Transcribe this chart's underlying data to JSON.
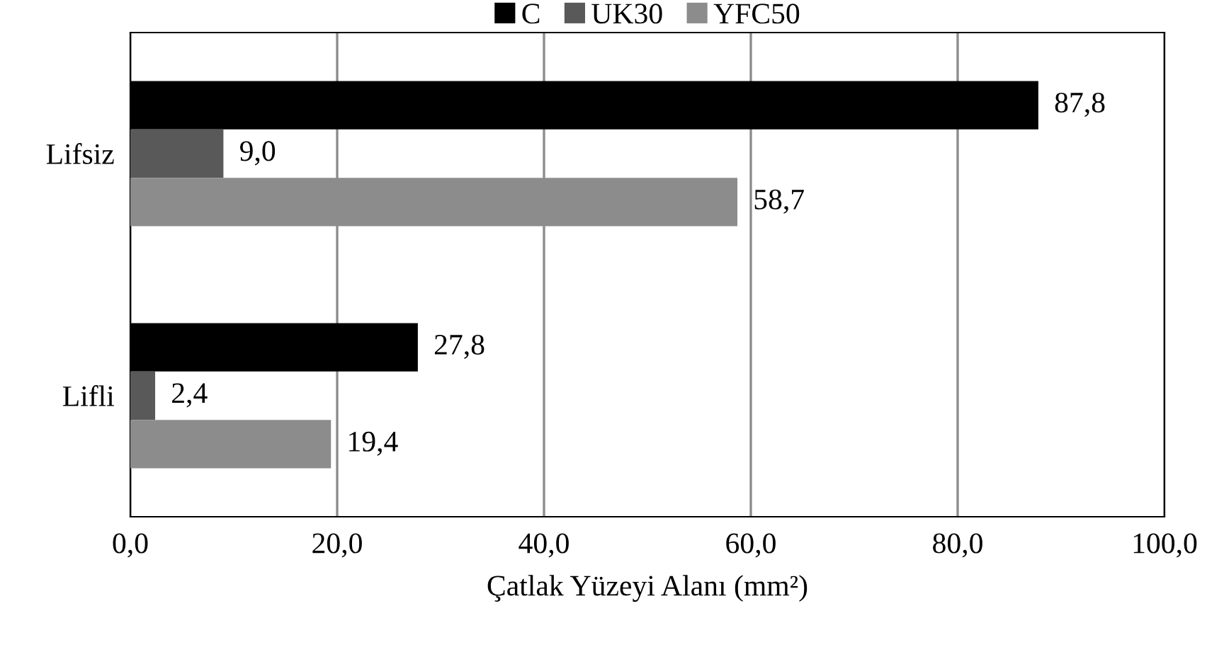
{
  "chart_data": {
    "type": "bar",
    "orientation": "horizontal",
    "xlabel": "Çatlak Yüzeyi Alanı (mm²)",
    "categories": [
      "Lifsiz",
      "Lifli"
    ],
    "series": [
      {
        "name": "C",
        "color": "#000000",
        "values": [
          87.8,
          27.8
        ],
        "value_labels": [
          "87,8",
          "27,8"
        ]
      },
      {
        "name": "UK30",
        "color": "#595959",
        "values": [
          9.0,
          2.4
        ],
        "value_labels": [
          "9,0",
          "2,4"
        ]
      },
      {
        "name": "YFC50",
        "color": "#8c8c8c",
        "values": [
          58.7,
          19.4
        ],
        "value_labels": [
          "58,7",
          "19,4"
        ]
      }
    ],
    "xlim": [
      0,
      100
    ],
    "xticks": [
      {
        "value": 0,
        "label": "0,0"
      },
      {
        "value": 20,
        "label": "20,0"
      },
      {
        "value": 40,
        "label": "40,0"
      },
      {
        "value": 60,
        "label": "60,0"
      },
      {
        "value": 80,
        "label": "80,0"
      },
      {
        "value": 100,
        "label": "100,0"
      }
    ],
    "grid": "x",
    "legend": "top"
  }
}
